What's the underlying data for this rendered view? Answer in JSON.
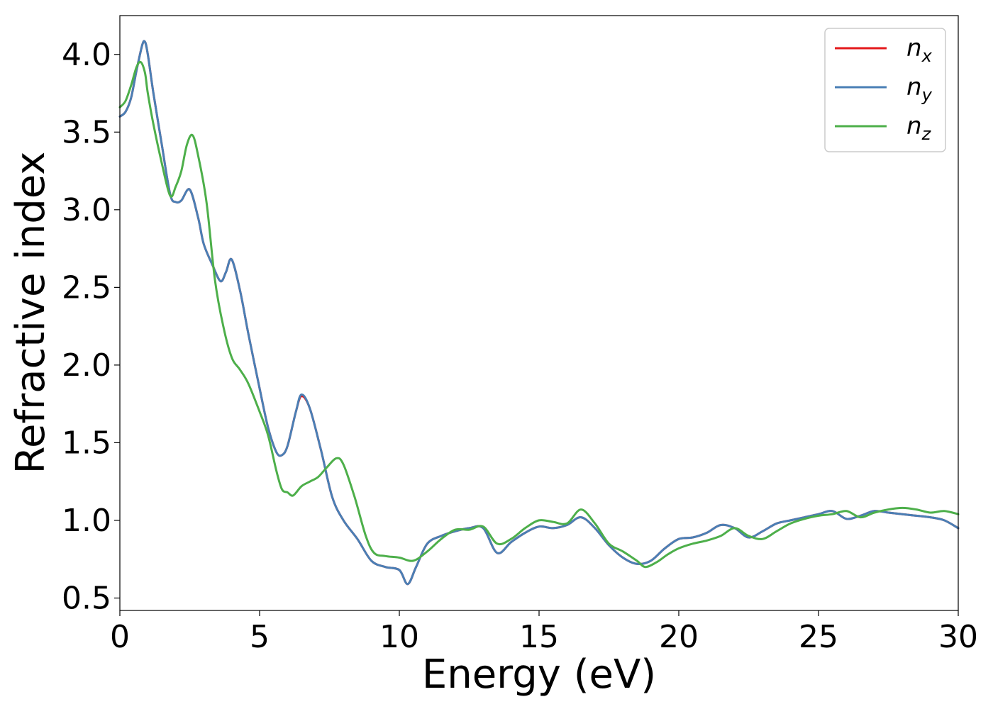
{
  "chart_data": {
    "type": "line",
    "xlabel": "Energy (eV)",
    "ylabel": "Refractive index",
    "xlim": [
      0,
      30
    ],
    "ylim": [
      0.42,
      4.25
    ],
    "xticks": [
      0,
      5,
      10,
      15,
      20,
      25,
      30
    ],
    "xtick_labels": [
      "0",
      "5",
      "10",
      "15",
      "20",
      "25",
      "30"
    ],
    "yticks": [
      0.5,
      1.0,
      1.5,
      2.0,
      2.5,
      3.0,
      3.5,
      4.0
    ],
    "ytick_labels": [
      "0.5",
      "1.0",
      "1.5",
      "2.0",
      "2.5",
      "3.0",
      "3.5",
      "4.0"
    ],
    "grid": false,
    "legend_position": "top-right",
    "series": [
      {
        "name": "n_x",
        "label_base": "n",
        "label_sub": "x",
        "color": "#e41a1c",
        "x": [
          0,
          0.2,
          0.4,
          0.6,
          0.8,
          0.9,
          1.0,
          1.2,
          1.5,
          1.8,
          2.0,
          2.2,
          2.5,
          2.8,
          3.0,
          3.3,
          3.6,
          3.8,
          4.0,
          4.3,
          4.6,
          5.0,
          5.3,
          5.6,
          5.8,
          6.0,
          6.3,
          6.5,
          6.8,
          7.2,
          7.6,
          8.0,
          8.5,
          9.0,
          9.5,
          10.0,
          10.3,
          10.6,
          11.0,
          11.5,
          12.0,
          12.5,
          13.0,
          13.5,
          14.0,
          14.5,
          15.0,
          15.5,
          16.0,
          16.5,
          17.0,
          17.5,
          18.0,
          18.5,
          19.0,
          19.5,
          20.0,
          20.5,
          21.0,
          21.5,
          22.0,
          22.5,
          23.0,
          23.5,
          24.0,
          24.5,
          25.0,
          25.5,
          26.0,
          26.5,
          27.0,
          27.5,
          28.0,
          28.5,
          29.0,
          29.5,
          30.0
        ],
        "y": [
          3.6,
          3.63,
          3.72,
          3.9,
          4.06,
          4.08,
          4.0,
          3.75,
          3.42,
          3.1,
          3.05,
          3.06,
          3.13,
          2.95,
          2.78,
          2.65,
          2.54,
          2.6,
          2.68,
          2.48,
          2.2,
          1.85,
          1.6,
          1.44,
          1.42,
          1.48,
          1.7,
          1.8,
          1.72,
          1.45,
          1.15,
          1.0,
          0.88,
          0.74,
          0.7,
          0.68,
          0.59,
          0.7,
          0.85,
          0.9,
          0.93,
          0.95,
          0.95,
          0.79,
          0.86,
          0.92,
          0.96,
          0.95,
          0.97,
          1.02,
          0.95,
          0.84,
          0.76,
          0.72,
          0.74,
          0.82,
          0.88,
          0.89,
          0.92,
          0.97,
          0.95,
          0.89,
          0.93,
          0.98,
          1.0,
          1.02,
          1.04,
          1.06,
          1.01,
          1.03,
          1.06,
          1.05,
          1.04,
          1.03,
          1.02,
          1.0,
          0.95
        ]
      },
      {
        "name": "n_y",
        "label_base": "n",
        "label_sub": "y",
        "color": "#4a7fb5",
        "x": [
          0,
          0.2,
          0.4,
          0.6,
          0.8,
          0.9,
          1.0,
          1.2,
          1.5,
          1.8,
          2.0,
          2.2,
          2.5,
          2.8,
          3.0,
          3.3,
          3.6,
          3.8,
          4.0,
          4.3,
          4.6,
          5.0,
          5.3,
          5.6,
          5.8,
          6.0,
          6.3,
          6.5,
          6.8,
          7.2,
          7.6,
          8.0,
          8.5,
          9.0,
          9.5,
          10.0,
          10.3,
          10.6,
          11.0,
          11.5,
          12.0,
          12.5,
          13.0,
          13.5,
          14.0,
          14.5,
          15.0,
          15.5,
          16.0,
          16.5,
          17.0,
          17.5,
          18.0,
          18.5,
          19.0,
          19.5,
          20.0,
          20.5,
          21.0,
          21.5,
          22.0,
          22.5,
          23.0,
          23.5,
          24.0,
          24.5,
          25.0,
          25.5,
          26.0,
          26.5,
          27.0,
          27.5,
          28.0,
          28.5,
          29.0,
          29.5,
          30.0
        ],
        "y": [
          3.6,
          3.63,
          3.72,
          3.9,
          4.06,
          4.08,
          4.0,
          3.75,
          3.42,
          3.1,
          3.05,
          3.06,
          3.13,
          2.95,
          2.78,
          2.65,
          2.54,
          2.6,
          2.68,
          2.48,
          2.2,
          1.85,
          1.6,
          1.44,
          1.42,
          1.48,
          1.7,
          1.81,
          1.72,
          1.45,
          1.15,
          1.0,
          0.88,
          0.74,
          0.7,
          0.68,
          0.59,
          0.7,
          0.85,
          0.9,
          0.93,
          0.95,
          0.95,
          0.79,
          0.86,
          0.92,
          0.96,
          0.95,
          0.97,
          1.02,
          0.95,
          0.84,
          0.76,
          0.72,
          0.74,
          0.82,
          0.88,
          0.89,
          0.92,
          0.97,
          0.95,
          0.89,
          0.93,
          0.98,
          1.0,
          1.02,
          1.04,
          1.06,
          1.01,
          1.03,
          1.06,
          1.05,
          1.04,
          1.03,
          1.02,
          1.0,
          0.95
        ]
      },
      {
        "name": "n_z",
        "label_base": "n",
        "label_sub": "z",
        "color": "#4daf4a",
        "x": [
          0,
          0.2,
          0.4,
          0.6,
          0.75,
          0.9,
          1.0,
          1.2,
          1.5,
          1.8,
          2.0,
          2.2,
          2.4,
          2.6,
          2.8,
          3.1,
          3.4,
          3.7,
          4.0,
          4.3,
          4.6,
          5.0,
          5.3,
          5.6,
          5.8,
          6.0,
          6.2,
          6.5,
          6.8,
          7.1,
          7.4,
          7.75,
          8.0,
          8.4,
          8.8,
          9.1,
          9.5,
          10.0,
          10.5,
          11.0,
          11.5,
          12.0,
          12.5,
          13.0,
          13.5,
          14.0,
          14.5,
          15.0,
          15.5,
          16.0,
          16.5,
          17.0,
          17.5,
          18.0,
          18.5,
          18.8,
          19.2,
          19.6,
          20.0,
          20.5,
          21.0,
          21.5,
          22.0,
          22.5,
          23.0,
          23.5,
          24.0,
          24.5,
          25.0,
          25.5,
          26.0,
          26.5,
          27.0,
          27.5,
          28.0,
          28.5,
          29.0,
          29.5,
          30.0
        ],
        "y": [
          3.66,
          3.7,
          3.8,
          3.92,
          3.95,
          3.88,
          3.75,
          3.55,
          3.3,
          3.09,
          3.15,
          3.25,
          3.42,
          3.48,
          3.35,
          3.05,
          2.55,
          2.25,
          2.05,
          1.97,
          1.88,
          1.7,
          1.55,
          1.32,
          1.2,
          1.18,
          1.16,
          1.22,
          1.25,
          1.28,
          1.34,
          1.4,
          1.36,
          1.15,
          0.9,
          0.79,
          0.77,
          0.76,
          0.74,
          0.8,
          0.88,
          0.94,
          0.94,
          0.96,
          0.85,
          0.88,
          0.95,
          1.0,
          0.99,
          0.98,
          1.07,
          0.98,
          0.85,
          0.8,
          0.74,
          0.7,
          0.73,
          0.78,
          0.82,
          0.85,
          0.87,
          0.9,
          0.95,
          0.9,
          0.88,
          0.93,
          0.98,
          1.01,
          1.03,
          1.04,
          1.06,
          1.02,
          1.05,
          1.07,
          1.08,
          1.07,
          1.05,
          1.06,
          1.04
        ]
      }
    ]
  }
}
